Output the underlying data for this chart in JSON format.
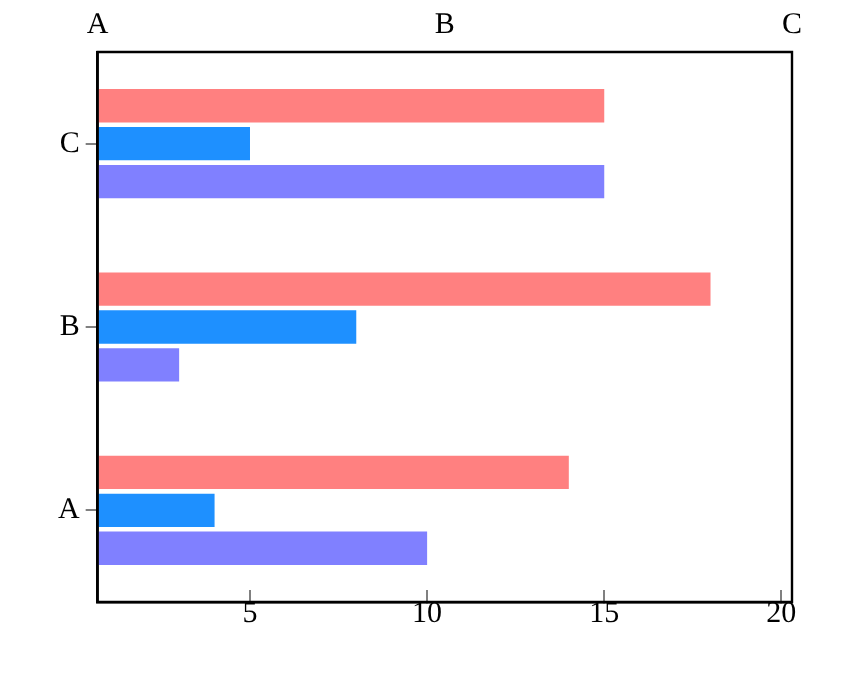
{
  "chart_data": {
    "type": "bar",
    "orientation": "horizontal",
    "categories": [
      "C",
      "B",
      "A"
    ],
    "series": [
      {
        "color": "#ff8080",
        "values": [
          15,
          18,
          14
        ]
      },
      {
        "color": "#1e90ff",
        "values": [
          5,
          8,
          4
        ]
      },
      {
        "color": "#8080ff",
        "values": [
          15,
          3,
          10
        ]
      }
    ],
    "xlim": [
      0.7,
      20.3
    ],
    "xticks": [
      5,
      10,
      15,
      20
    ],
    "annotations": [
      "A",
      "B",
      "C"
    ],
    "grid": false,
    "legend": false
  }
}
